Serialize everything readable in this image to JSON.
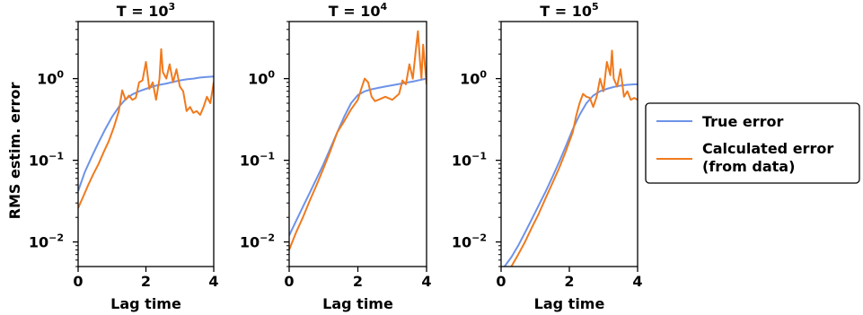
{
  "figure": {
    "ylabel": "RMS estim. error",
    "legend": {
      "placement": "right",
      "entries": [
        {
          "label": "True error",
          "color": "#6d93e8"
        },
        {
          "label_lines": [
            "Calculated error",
            "(from data)"
          ],
          "color": "#f07a1e"
        }
      ]
    }
  },
  "chart_data": [
    {
      "type": "line",
      "title_prefix": "T = 10",
      "title_exp": "3",
      "xlabel": "Lag time",
      "xlim": [
        0,
        4
      ],
      "xticks": [
        "0",
        "2",
        "4"
      ],
      "ylim": [
        0.005,
        5
      ],
      "yscale": "log",
      "yticks": [
        {
          "base": "10",
          "exp": "0"
        },
        {
          "base": "10",
          "exp": "−1"
        },
        {
          "base": "10",
          "exp": "−2"
        }
      ],
      "series": [
        {
          "name": "True error",
          "color": "#6d93e8",
          "x": [
            0,
            0.2,
            0.4,
            0.6,
            0.8,
            1.0,
            1.2,
            1.4,
            1.6,
            1.8,
            2.0,
            2.2,
            2.4,
            2.6,
            2.8,
            3.0,
            3.2,
            3.4,
            3.6,
            3.8,
            4.0
          ],
          "y": [
            0.042,
            0.072,
            0.11,
            0.165,
            0.24,
            0.34,
            0.45,
            0.56,
            0.64,
            0.7,
            0.75,
            0.8,
            0.84,
            0.87,
            0.91,
            0.95,
            0.98,
            1.0,
            1.03,
            1.05,
            1.06
          ]
        },
        {
          "name": "Calculated error (from data)",
          "color": "#f07a1e",
          "x": [
            0,
            0.15,
            0.3,
            0.45,
            0.6,
            0.75,
            0.9,
            1.05,
            1.2,
            1.3,
            1.4,
            1.5,
            1.6,
            1.7,
            1.8,
            1.9,
            2.0,
            2.05,
            2.1,
            2.2,
            2.3,
            2.4,
            2.45,
            2.5,
            2.6,
            2.7,
            2.8,
            2.9,
            3.0,
            3.1,
            3.2,
            3.3,
            3.4,
            3.5,
            3.6,
            3.7,
            3.8,
            3.9,
            4.0
          ],
          "y": [
            0.026,
            0.036,
            0.05,
            0.068,
            0.09,
            0.125,
            0.17,
            0.25,
            0.4,
            0.72,
            0.55,
            0.62,
            0.55,
            0.58,
            0.9,
            0.95,
            1.6,
            1.1,
            0.75,
            0.9,
            0.55,
            1.0,
            2.3,
            1.2,
            1.0,
            1.5,
            0.9,
            1.3,
            0.8,
            0.7,
            0.4,
            0.45,
            0.38,
            0.4,
            0.36,
            0.45,
            0.6,
            0.5,
            0.9
          ]
        }
      ]
    },
    {
      "type": "line",
      "title_prefix": "T = 10",
      "title_exp": "4",
      "xlabel": "Lag time",
      "xlim": [
        0,
        4
      ],
      "xticks": [
        "0",
        "2",
        "4"
      ],
      "ylim": [
        0.005,
        5
      ],
      "yscale": "log",
      "yticks": [
        {
          "base": "10",
          "exp": "0"
        },
        {
          "base": "10",
          "exp": "−1"
        },
        {
          "base": "10",
          "exp": "−2"
        }
      ],
      "series": [
        {
          "name": "True error",
          "color": "#6d93e8",
          "x": [
            0,
            0.2,
            0.4,
            0.6,
            0.8,
            1.0,
            1.2,
            1.4,
            1.6,
            1.8,
            2.0,
            2.2,
            2.4,
            2.6,
            2.8,
            3.0,
            3.2,
            3.4,
            3.6,
            3.8,
            4.0
          ],
          "y": [
            0.012,
            0.018,
            0.027,
            0.04,
            0.06,
            0.09,
            0.14,
            0.22,
            0.34,
            0.5,
            0.63,
            0.7,
            0.74,
            0.77,
            0.8,
            0.83,
            0.86,
            0.89,
            0.92,
            0.96,
            1.0
          ]
        },
        {
          "name": "Calculated error (from data)",
          "color": "#f07a1e",
          "x": [
            0,
            0.2,
            0.4,
            0.6,
            0.8,
            1.0,
            1.2,
            1.4,
            1.6,
            1.8,
            2.0,
            2.1,
            2.2,
            2.3,
            2.4,
            2.5,
            2.6,
            2.8,
            3.0,
            3.2,
            3.3,
            3.4,
            3.5,
            3.6,
            3.7,
            3.75,
            3.8,
            3.85,
            3.9,
            4.0
          ],
          "y": [
            0.008,
            0.013,
            0.02,
            0.032,
            0.05,
            0.08,
            0.13,
            0.22,
            0.3,
            0.42,
            0.55,
            0.75,
            1.0,
            0.9,
            0.6,
            0.53,
            0.55,
            0.6,
            0.55,
            0.65,
            0.95,
            0.85,
            1.5,
            1.0,
            2.5,
            3.8,
            1.8,
            1.0,
            2.6,
            0.85
          ]
        }
      ]
    },
    {
      "type": "line",
      "title_prefix": "T = 10",
      "title_exp": "5",
      "xlabel": "Lag time",
      "xlim": [
        0,
        4
      ],
      "xticks": [
        "0",
        "2",
        "4"
      ],
      "ylim": [
        0.005,
        5
      ],
      "yscale": "log",
      "yticks": [
        {
          "base": "10",
          "exp": "0"
        },
        {
          "base": "10",
          "exp": "−1"
        },
        {
          "base": "10",
          "exp": "−2"
        }
      ],
      "series": [
        {
          "name": "True error",
          "color": "#6d93e8",
          "x": [
            0.1,
            0.3,
            0.5,
            0.7,
            0.9,
            1.1,
            1.3,
            1.5,
            1.7,
            1.9,
            2.1,
            2.3,
            2.5,
            2.7,
            2.9,
            3.1,
            3.3,
            3.5,
            3.7,
            3.9,
            4.0
          ],
          "y": [
            0.005,
            0.0065,
            0.009,
            0.013,
            0.019,
            0.028,
            0.041,
            0.062,
            0.095,
            0.15,
            0.24,
            0.36,
            0.5,
            0.62,
            0.7,
            0.75,
            0.79,
            0.82,
            0.84,
            0.85,
            0.85
          ]
        },
        {
          "name": "Calculated error (from data)",
          "color": "#f07a1e",
          "x": [
            0.3,
            0.5,
            0.7,
            0.9,
            1.1,
            1.3,
            1.5,
            1.7,
            1.9,
            2.1,
            2.2,
            2.3,
            2.4,
            2.5,
            2.6,
            2.7,
            2.8,
            2.9,
            3.0,
            3.1,
            3.2,
            3.25,
            3.3,
            3.4,
            3.5,
            3.6,
            3.7,
            3.8,
            3.9,
            4.0
          ],
          "y": [
            0.005,
            0.007,
            0.01,
            0.015,
            0.022,
            0.034,
            0.052,
            0.08,
            0.13,
            0.22,
            0.35,
            0.5,
            0.65,
            0.6,
            0.58,
            0.45,
            0.6,
            1.0,
            0.7,
            1.6,
            1.1,
            2.2,
            1.0,
            0.8,
            1.3,
            0.6,
            0.7,
            0.55,
            0.58,
            0.55
          ]
        }
      ]
    }
  ]
}
